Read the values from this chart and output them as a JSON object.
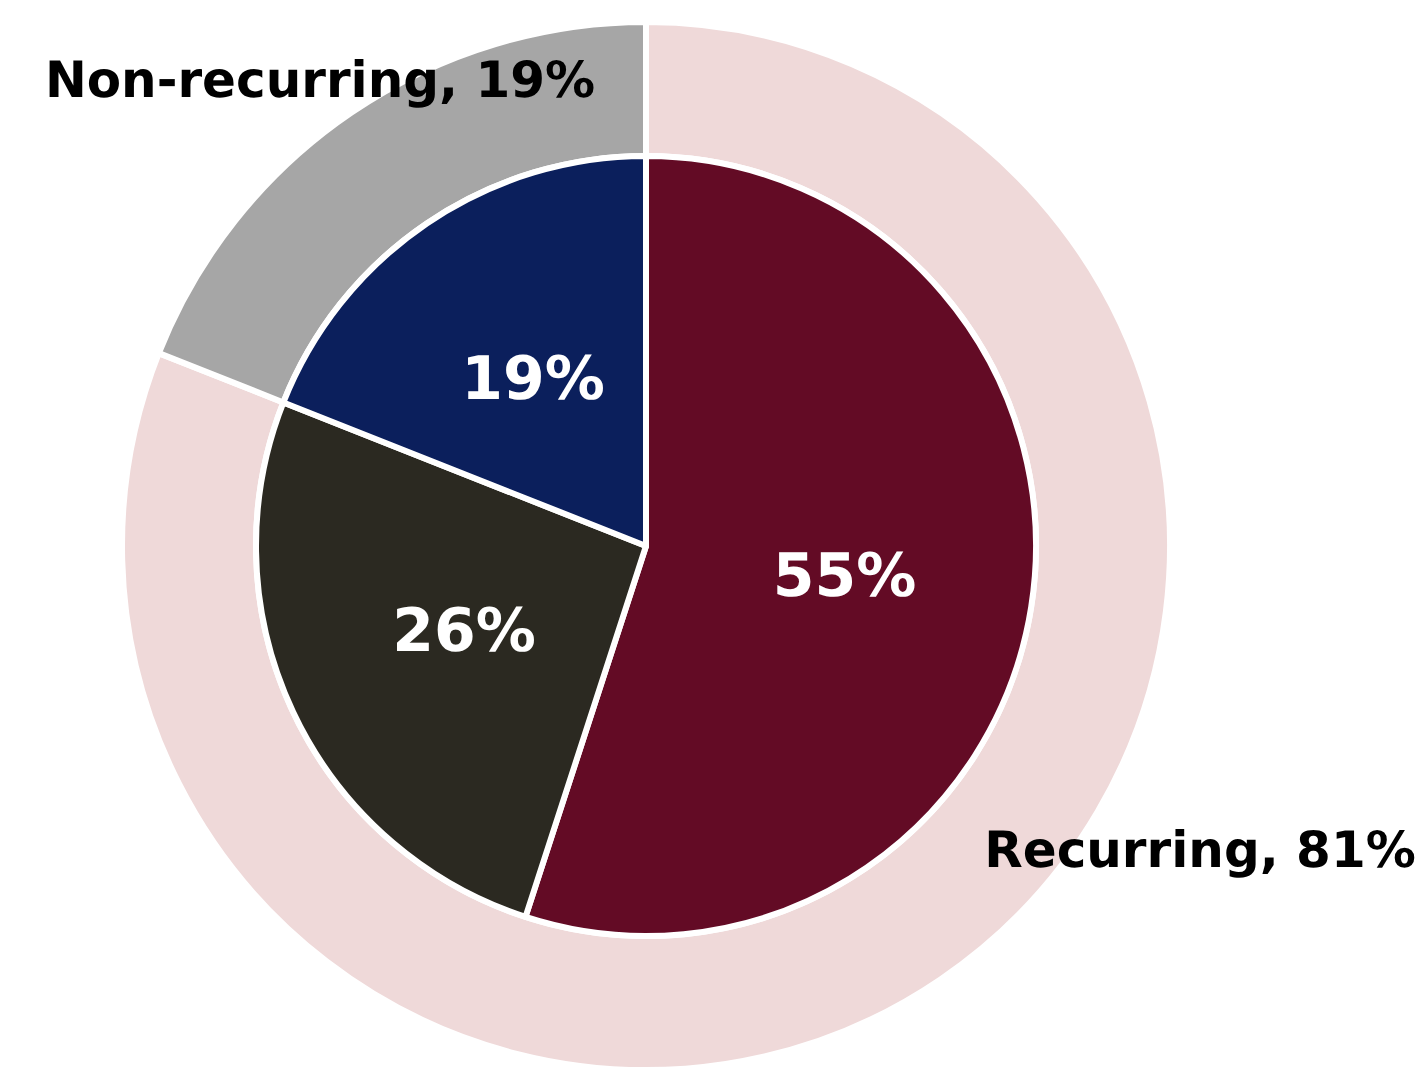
{
  "chart_data": [
    {
      "type": "pie",
      "categories": [
        null,
        null,
        null
      ],
      "values": [
        55,
        26,
        19
      ],
      "colors": [
        "#630b25",
        "#2b2921",
        "#0b1f5c"
      ],
      "value_labels": [
        "55%",
        "26%",
        "19%"
      ]
    },
    {
      "type": "donut",
      "categories": [
        "Recurring",
        "Non-recurring"
      ],
      "values": [
        81,
        19
      ],
      "colors": [
        "#efd9d9",
        "#a6a6a6"
      ],
      "value_labels": [
        "81%",
        "19%"
      ]
    }
  ]
}
